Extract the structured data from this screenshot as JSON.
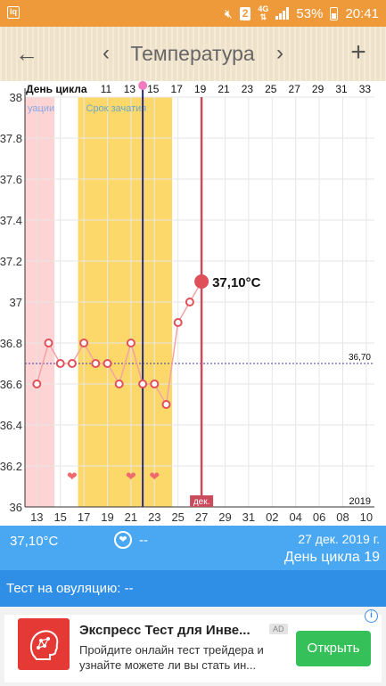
{
  "status_bar": {
    "sim_label": "2",
    "network_top": "4G",
    "network_bottom": "⇅",
    "battery": "53%",
    "time": "20:41"
  },
  "app_bar": {
    "title": "Температура",
    "back_icon": "←",
    "prev_icon": "‹",
    "next_icon": "›",
    "add_icon": "+"
  },
  "chart_data": {
    "type": "line",
    "top_axis_title": "День цикла",
    "top_axis_labels": [
      "11",
      "13",
      "15",
      "17",
      "19",
      "21",
      "23",
      "25",
      "27",
      "29",
      "31",
      "33"
    ],
    "x_labels": [
      "13",
      "15",
      "17",
      "19",
      "21",
      "23",
      "25",
      "27",
      "29",
      "31",
      "02",
      "04",
      "06",
      "08",
      "10"
    ],
    "month_label": "дек.",
    "year_label": "2019",
    "y_ticks": [
      "36",
      "36.2",
      "36.4",
      "36.6",
      "36.8",
      "37",
      "37.2",
      "37.4",
      "37.6",
      "37.8",
      "38"
    ],
    "ylim": [
      36,
      38
    ],
    "series": [
      {
        "x": [
          "13",
          "14",
          "15",
          "16",
          "17",
          "18",
          "19",
          "20",
          "21",
          "22",
          "23",
          "24",
          "25",
          "26",
          "27"
        ],
        "values": [
          36.6,
          36.8,
          36.7,
          36.7,
          36.8,
          36.7,
          36.7,
          36.6,
          36.8,
          36.6,
          36.6,
          36.5,
          36.9,
          37.0,
          37.1
        ]
      }
    ],
    "selected_label": "37,10°C",
    "baseline_label": "36,70",
    "baseline_value": 36.7,
    "zones": [
      {
        "label": "уации",
        "from": "12",
        "to": "15",
        "color": "#fdd3d3"
      },
      {
        "label": "Срок зачатия",
        "from": "17",
        "to": "24",
        "color": "#fcd86a"
      }
    ],
    "heart_days": [
      "16",
      "21",
      "23"
    ],
    "today_day": "22",
    "selected_day": "27"
  },
  "info_bar": {
    "temperature": "37,10°C",
    "heart_icon": "❤",
    "sex_value": "--",
    "date": "27 дек. 2019 г.",
    "cycle_day": "День цикла 19"
  },
  "test_bar": {
    "text": "Тест на овуляцию: --"
  },
  "ad": {
    "headline": "Экспресс Тест для Инве...",
    "badge": "AD",
    "body": "Пройдите онлайн тест трейдера и узнайте можете ли вы стать ин...",
    "cta": "Открыть",
    "info_icon": "i"
  },
  "colors": {
    "status_bar": "#ee9a3a",
    "info_bar": "#4aa8f3",
    "test_bar": "#2f8ee6",
    "line": "#f2a3a3",
    "marker": "#e0505a",
    "selected_line": "#c94b5c",
    "today_line": "#2a2a8a",
    "cta": "#36c05a"
  }
}
